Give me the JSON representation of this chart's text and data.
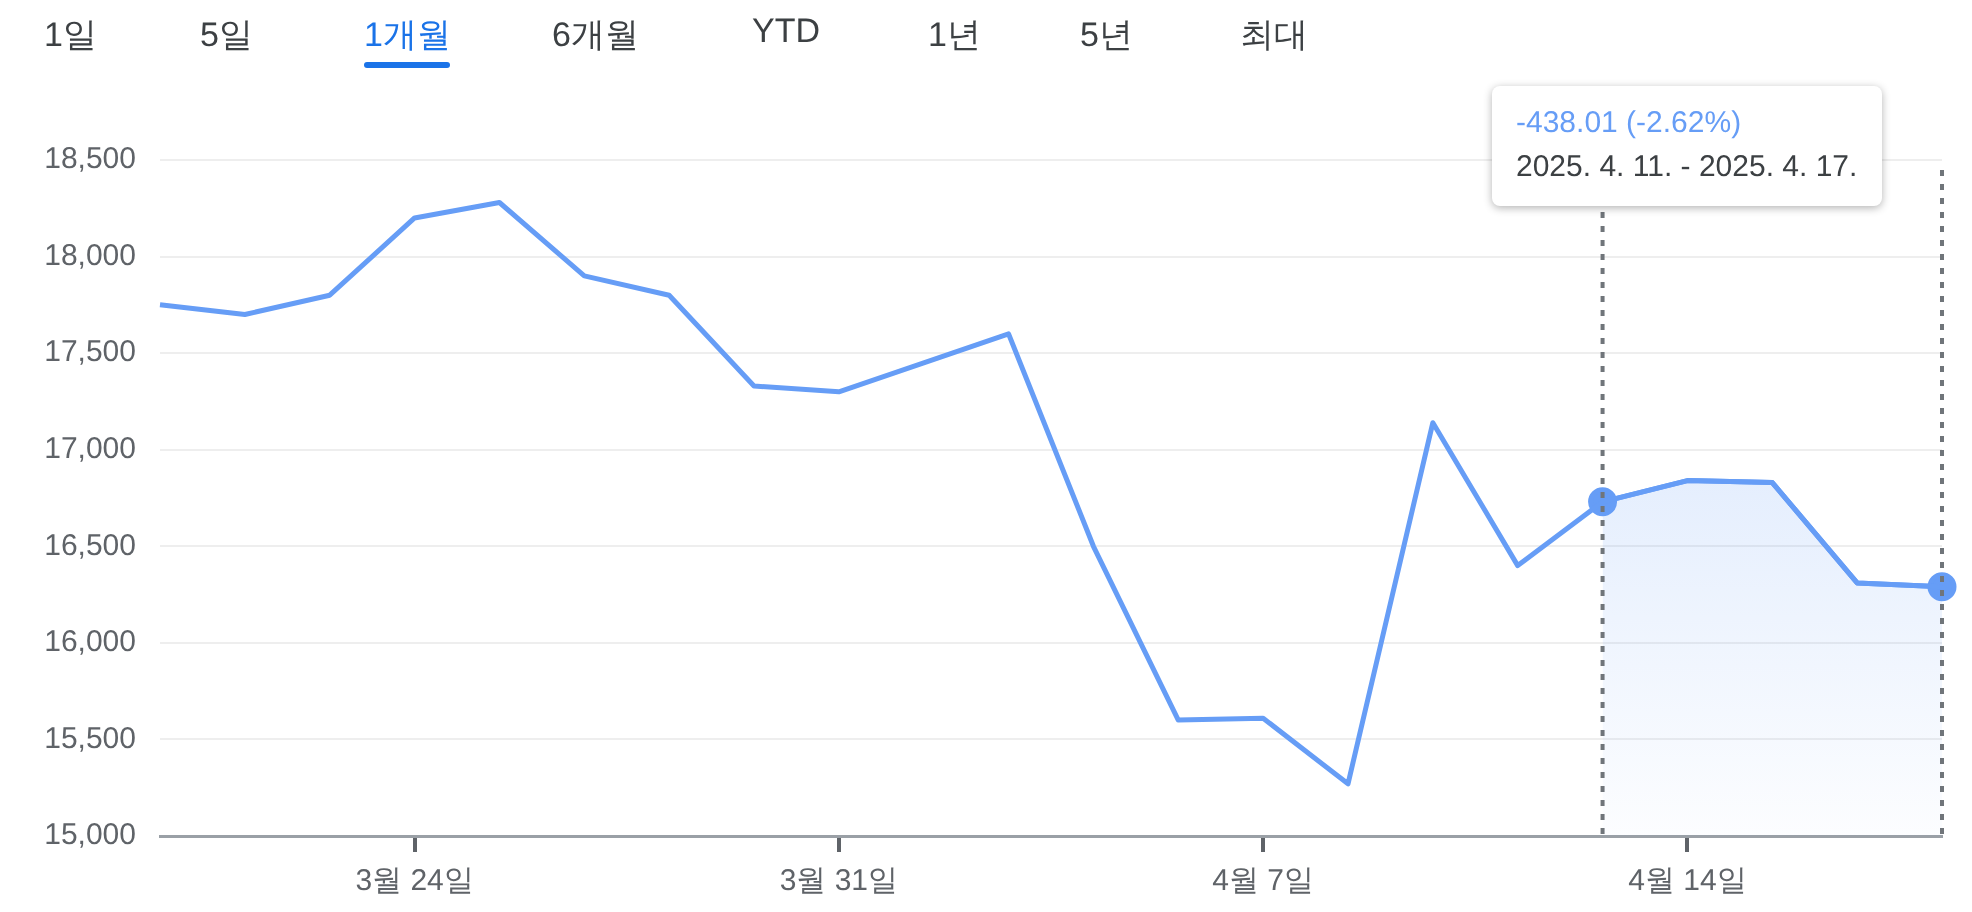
{
  "chart_data": {
    "type": "line",
    "categories": [
      null,
      null,
      null,
      "3월 24일",
      null,
      null,
      null,
      null,
      "3월 31일",
      null,
      null,
      null,
      null,
      "4월 7일",
      null,
      null,
      null,
      null,
      "4월 14일",
      null,
      null,
      null
    ],
    "series": [
      {
        "color": "#669df6",
        "marker": "none",
        "values": [
          17750,
          17700,
          17800,
          18200,
          18280,
          17900,
          17800,
          17330,
          17300,
          17450,
          17600,
          16500,
          15600,
          15610,
          15270,
          17140,
          16400,
          16730,
          16840,
          16830,
          16310,
          16290
        ]
      },
      {
        "type": "area",
        "color": "#669df6",
        "marker": "none",
        "values": [
          null,
          null,
          null,
          null,
          null,
          null,
          null,
          null,
          null,
          null,
          null,
          null,
          null,
          null,
          null,
          null,
          null,
          16730,
          16840,
          16830,
          16310,
          16290
        ]
      },
      {
        "type": "scatter",
        "color": "#669df6",
        "marker": "circle",
        "values": [
          null,
          null,
          null,
          null,
          null,
          null,
          null,
          null,
          null,
          null,
          null,
          null,
          null,
          null,
          null,
          null,
          null,
          16730,
          null,
          null,
          null,
          16290
        ]
      }
    ],
    "ylim": [
      15000,
      18500
    ],
    "yticks": [
      {
        "value": 15000,
        "label": "15,000"
      },
      {
        "value": 15500,
        "label": "15,500"
      },
      {
        "value": 16000,
        "label": "16,000"
      },
      {
        "value": 16500,
        "label": "16,500"
      },
      {
        "value": 17000,
        "label": "17,000"
      },
      {
        "value": 17500,
        "label": "17,500"
      },
      {
        "value": 18000,
        "label": "18,000"
      },
      {
        "value": 18500,
        "label": "18,500"
      }
    ],
    "grid": "y",
    "legend": false,
    "line_style": "solid",
    "annotations": [
      "1일",
      "5일",
      "1개월",
      "6개월",
      "YTD",
      "1년",
      "5년",
      "최대",
      "-438.01 (-2.62%)",
      "2025. 4. 11. - 2025. 4. 17."
    ]
  }
}
